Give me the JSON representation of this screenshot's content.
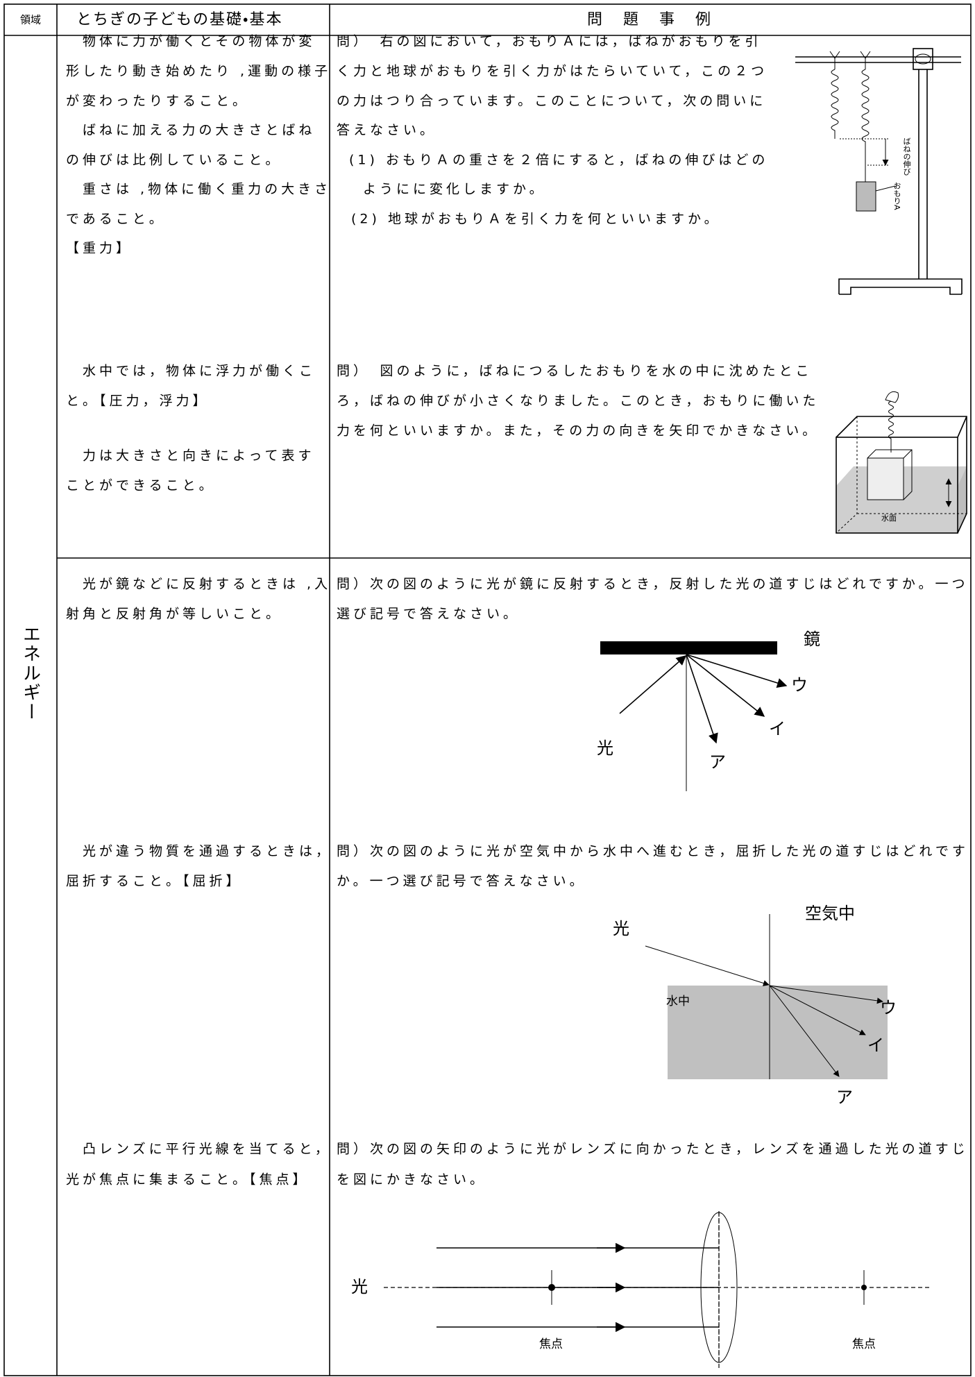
{
  "header": {
    "domain": "領域",
    "basics": "とちぎの子どもの基礎・基本",
    "examples": "問　題　事　例"
  },
  "domain_label": "エネルギー",
  "sections": [
    {
      "basics": [
        "　物体に力が働くとその物体が変",
        "形したり動き始めたり ,運動の様子",
        "が変わったりすること。",
        "　ばねに加える力の大きさとばね",
        "の伸びは比例していること。",
        "　重さは ,物体に働く重力の大きさ",
        "であること。",
        "【重力】"
      ],
      "question": [
        "問）　右の図において，おもりＡには，ばねがおもりを引",
        "く力と地球がおもりを引く力がはたらいていて，この２つ",
        "の力はつり合っています。このことについて，次の問いに",
        "答えなさい。",
        "(1) おもりＡの重さを２倍にすると，ばねの伸びはどの",
        "ようにに変化しますか。",
        "(2) 地球がおもりＡを引く力を何といいますか。"
      ],
      "figure_labels": [
        "ばねの伸び",
        "おもりA"
      ]
    },
    {
      "basics": [
        "　水中では，物体に浮力が働くこ",
        "と。【圧力，浮力】",
        "　力は大きさと向きによって表す",
        "ことができること。"
      ],
      "question": [
        "問）　図のように，ばねにつるしたおもりを水の中に沈めたとこ",
        "ろ，ばねの伸びが小さくなりました。このとき，おもりに働いた",
        "力を何といいますか。また，その力の向きを矢印でかきなさい。"
      ],
      "figure_labels": [
        "水面"
      ]
    },
    {
      "basics": [
        "　光が鏡などに反射するときは ,入",
        "射角と反射角が等しいこと。"
      ],
      "question": [
        "問）次の図のように光が鏡に反射するとき，反射した光の道すじはどれですか。一つ",
        "選び記号で答えなさい。"
      ],
      "figure_labels": [
        "鏡",
        "ウ",
        "イ",
        "ア",
        "光"
      ]
    },
    {
      "basics": [
        "　光が違う物質を通過するときは，",
        "屈折すること。【屈折】"
      ],
      "question": [
        "問）次の図のように光が空気中から水中へ進むとき，屈折した光の道すじはどれです",
        "か。一つ選び記号で答えなさい。"
      ],
      "figure_labels": [
        "空気中",
        "光",
        "水中",
        "ウ",
        "イ",
        "ア"
      ]
    },
    {
      "basics": [
        "　凸レンズに平行光線を当てると，",
        "光が焦点に集まること。【焦点】"
      ],
      "question": [
        "問）次の図の矢印のように光がレンズに向かったとき，レンズを通過した光の道すじ",
        "を図にかきなさい。"
      ],
      "figure_labels": [
        "光",
        "焦点",
        "焦点"
      ]
    }
  ]
}
